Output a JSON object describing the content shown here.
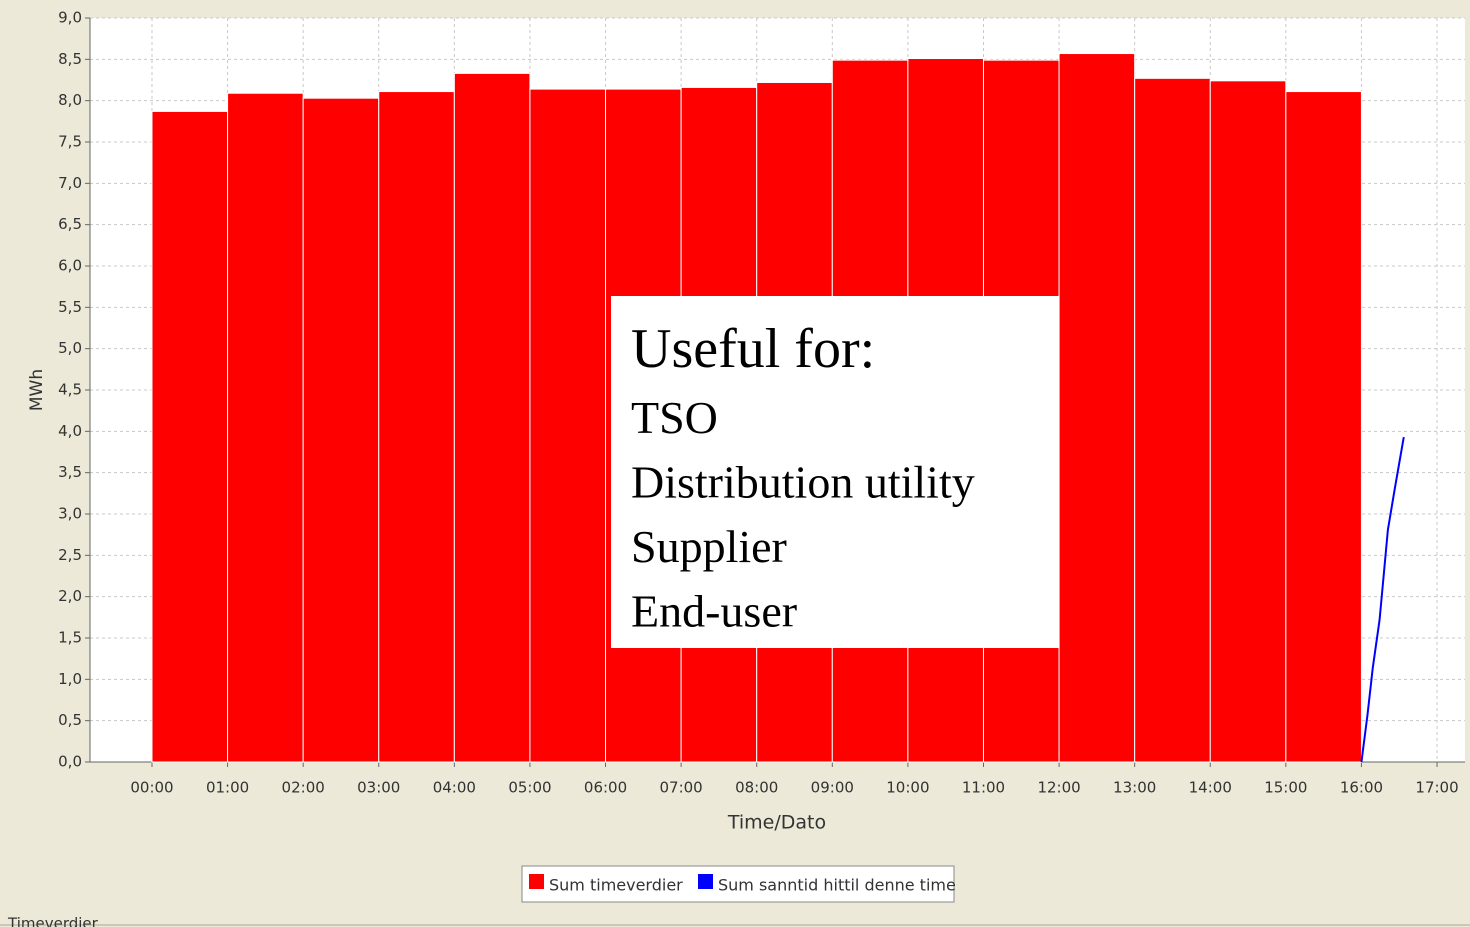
{
  "chart_data": {
    "type": "bar",
    "xlabel": "Time/Dato",
    "ylabel": "MWh",
    "xlim": [
      -0.82,
      17.37
    ],
    "ylim": [
      0,
      9
    ],
    "xticks": [
      {
        "value": 0,
        "label": "00:00"
      },
      {
        "value": 1,
        "label": "01:00"
      },
      {
        "value": 2,
        "label": "02:00"
      },
      {
        "value": 3,
        "label": "03:00"
      },
      {
        "value": 4,
        "label": "04:00"
      },
      {
        "value": 5,
        "label": "05:00"
      },
      {
        "value": 6,
        "label": "06:00"
      },
      {
        "value": 7,
        "label": "07:00"
      },
      {
        "value": 8,
        "label": "08:00"
      },
      {
        "value": 9,
        "label": "09:00"
      },
      {
        "value": 10,
        "label": "10:00"
      },
      {
        "value": 11,
        "label": "11:00"
      },
      {
        "value": 12,
        "label": "12:00"
      },
      {
        "value": 13,
        "label": "13:00"
      },
      {
        "value": 14,
        "label": "14:00"
      },
      {
        "value": 15,
        "label": "15:00"
      },
      {
        "value": 16,
        "label": "16:00"
      },
      {
        "value": 17,
        "label": "17:00"
      }
    ],
    "yticks": [
      {
        "value": 0,
        "label": "0,0"
      },
      {
        "value": 0.5,
        "label": "0,5"
      },
      {
        "value": 1,
        "label": "1,0"
      },
      {
        "value": 1.5,
        "label": "1,5"
      },
      {
        "value": 2,
        "label": "2,0"
      },
      {
        "value": 2.5,
        "label": "2,5"
      },
      {
        "value": 3,
        "label": "3,0"
      },
      {
        "value": 3.5,
        "label": "3,5"
      },
      {
        "value": 4,
        "label": "4,0"
      },
      {
        "value": 4.5,
        "label": "4,5"
      },
      {
        "value": 5,
        "label": "5,0"
      },
      {
        "value": 5.5,
        "label": "5,5"
      },
      {
        "value": 6,
        "label": "6,0"
      },
      {
        "value": 6.5,
        "label": "6,5"
      },
      {
        "value": 7,
        "label": "7,0"
      },
      {
        "value": 7.5,
        "label": "7,5"
      },
      {
        "value": 8,
        "label": "8,0"
      },
      {
        "value": 8.5,
        "label": "8,5"
      },
      {
        "value": 9,
        "label": "9,0"
      }
    ],
    "grid": true,
    "series": [
      {
        "name": "Sum timeverdier",
        "color": "#ff0000",
        "type": "bar",
        "x": [
          0,
          1,
          2,
          3,
          4,
          5,
          6,
          7,
          8,
          9,
          10,
          11,
          12,
          13,
          14,
          15
        ],
        "values": [
          7.87,
          8.09,
          8.03,
          8.11,
          8.33,
          8.14,
          8.14,
          8.16,
          8.22,
          8.49,
          8.51,
          8.49,
          8.57,
          8.27,
          8.24,
          8.11
        ]
      },
      {
        "name": "Sum sanntid hittil denne time",
        "color": "#0000ff",
        "type": "line",
        "x": [
          16.0,
          16.08,
          16.15,
          16.24,
          16.35,
          16.44,
          16.56
        ],
        "values": [
          0,
          0.57,
          1.14,
          1.72,
          2.81,
          3.3,
          3.93
        ]
      }
    ],
    "annotation": {
      "title": "Useful for:",
      "lines": [
        "TSO",
        "Distribution utility",
        "Supplier",
        "End-user"
      ]
    },
    "footer": "Timeverdier"
  }
}
